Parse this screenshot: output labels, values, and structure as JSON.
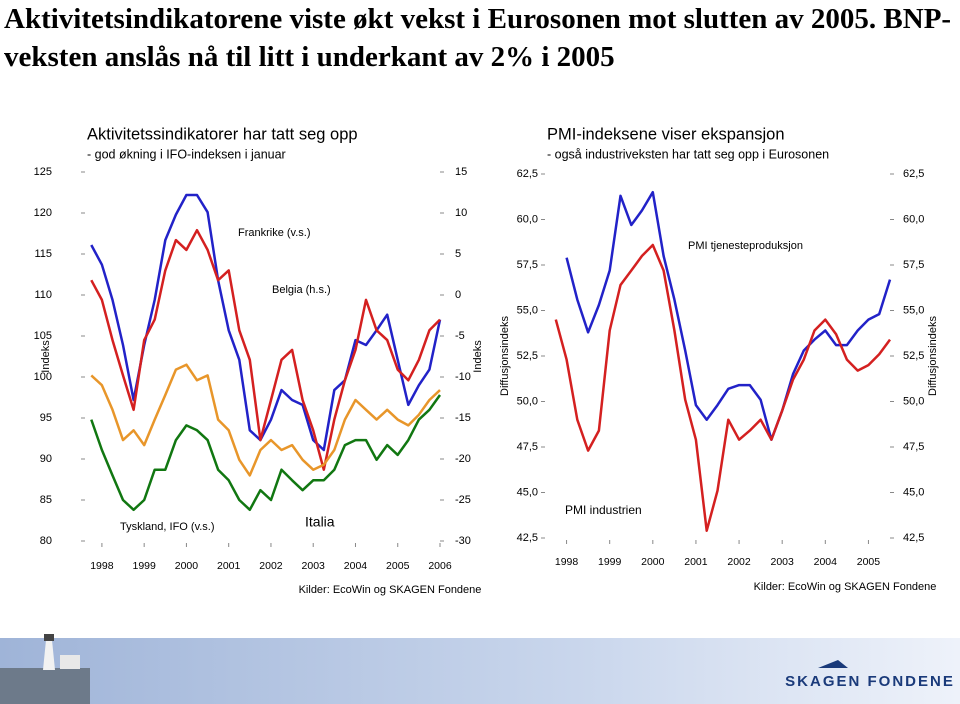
{
  "title": "Aktivitetsindikatorene viste økt vekst i Eurosonen mot slutten av 2005. BNP-veksten anslås nå til litt i underkant av 2% i 2005",
  "logo": "SKAGEN FONDENE",
  "chart_data": [
    {
      "type": "line",
      "title": "Aktivitetssindikatorer har tatt seg opp",
      "subtitle": "- god økning i IFO-indeksen i januar",
      "ylabel": "Indeks",
      "y2label": "Indeks",
      "source": "Kilder: EcoWin og SKAGEN Fondene",
      "xlim": [
        1997.6,
        2006.0
      ],
      "xticks": [
        1998,
        1999,
        2000,
        2001,
        2002,
        2003,
        2004,
        2005,
        2006
      ],
      "ylim": [
        80,
        125
      ],
      "yticks": [
        80,
        85,
        90,
        95,
        100,
        105,
        110,
        115,
        120,
        125
      ],
      "y2lim": [
        -30,
        15
      ],
      "y2ticks": [
        -30,
        -25,
        -20,
        -15,
        -10,
        -5,
        0,
        5,
        10,
        15
      ],
      "x": [
        1997.75,
        1998.0,
        1998.25,
        1998.5,
        1998.75,
        1999.0,
        1999.25,
        1999.5,
        1999.75,
        2000.0,
        2000.25,
        2000.5,
        2000.75,
        2001.0,
        2001.25,
        2001.5,
        2001.75,
        2002.0,
        2002.25,
        2002.5,
        2002.75,
        2003.0,
        2003.25,
        2003.5,
        2003.75,
        2004.0,
        2004.25,
        2004.5,
        2004.75,
        2005.0,
        2005.25,
        2005.5,
        2005.75,
        2006.0
      ],
      "series": [
        {
          "name": "Frankrike (v.s.)",
          "color": "#2222c8",
          "values": [
            116.1,
            113.7,
            109.4,
            103.9,
            97.2,
            103.9,
            109.4,
            116.7,
            119.8,
            122.2,
            122.2,
            120.1,
            111.8,
            105.7,
            102.1,
            93.5,
            92.3,
            94.8,
            98.4,
            97.2,
            96.6,
            92.3,
            91.1,
            98.4,
            99.6,
            104.5,
            103.9,
            105.7,
            107.6,
            102.1,
            96.6,
            99.0,
            100.9,
            107.0
          ]
        },
        {
          "name": "Belgia (h.s.)",
          "color": "#d42020",
          "axis": "y2",
          "values": [
            1.8,
            -0.6,
            -5.5,
            -9.8,
            -14.0,
            -5.5,
            -3.0,
            3.0,
            6.7,
            5.5,
            7.9,
            5.5,
            1.8,
            3.0,
            -4.3,
            -7.9,
            -17.7,
            -12.8,
            -7.9,
            -6.7,
            -12.8,
            -16.5,
            -21.3,
            -15.2,
            -10.4,
            -6.7,
            -0.6,
            -4.3,
            -5.5,
            -9.1,
            -10.4,
            -7.9,
            -4.3,
            -3.0
          ]
        },
        {
          "name": "Italia",
          "color": "#e8962a",
          "values": [
            100.2,
            99.0,
            96.0,
            92.3,
            93.5,
            91.7,
            94.8,
            97.8,
            100.9,
            101.5,
            99.6,
            100.2,
            94.8,
            93.5,
            89.9,
            88.0,
            91.1,
            92.3,
            91.1,
            91.7,
            89.9,
            88.7,
            89.3,
            91.1,
            94.8,
            97.2,
            96.0,
            94.8,
            96.0,
            94.8,
            94.1,
            95.4,
            97.2,
            98.4
          ]
        },
        {
          "name": "Tyskland, IFO (v.s.)",
          "color": "#117711",
          "values": [
            94.8,
            91.1,
            88.0,
            85.0,
            83.8,
            85.0,
            88.7,
            88.7,
            92.3,
            94.1,
            93.5,
            92.3,
            88.7,
            87.4,
            85.0,
            83.8,
            86.2,
            85.0,
            88.7,
            87.4,
            86.2,
            87.4,
            87.4,
            88.7,
            91.7,
            92.3,
            92.3,
            89.9,
            91.7,
            90.5,
            92.3,
            94.8,
            96.0,
            97.8
          ]
        }
      ]
    },
    {
      "type": "line",
      "title": "PMI-indeksene viser ekspansjon",
      "subtitle": "- også industriveksten har tatt seg opp i Eurosonen",
      "ylabel": "Diffusjonsindeks",
      "y2label": "Diffusjonsindeks",
      "source": "Kilder: EcoWin og SKAGEN Fondene",
      "xlim": [
        1997.5,
        2005.5
      ],
      "xticks": [
        1998,
        1999,
        2000,
        2001,
        2002,
        2003,
        2004,
        2005
      ],
      "ylim": [
        42.5,
        62.5
      ],
      "yticks": [
        {
          "value": 42.5,
          "label": "42,5"
        },
        {
          "value": 45,
          "label": "45,0"
        },
        {
          "value": 47.5,
          "label": "47,5"
        },
        {
          "value": 50,
          "label": "50,0"
        },
        {
          "value": 52.5,
          "label": "52,5"
        },
        {
          "value": 55,
          "label": "55,0"
        },
        {
          "value": 57.5,
          "label": "57,5"
        },
        {
          "value": 60,
          "label": "60,0"
        },
        {
          "value": 62.5,
          "label": "62,5"
        }
      ],
      "y2lim": [
        42.5,
        62.5
      ],
      "y2ticks": [
        {
          "value": 42.5,
          "label": "42,5"
        },
        {
          "value": 45,
          "label": "45,0"
        },
        {
          "value": 47.5,
          "label": "47,5"
        },
        {
          "value": 50,
          "label": "50,0"
        },
        {
          "value": 52.5,
          "label": "52,5"
        },
        {
          "value": 55,
          "label": "55,0"
        },
        {
          "value": 57.5,
          "label": "57,5"
        },
        {
          "value": 60,
          "label": "60,0"
        },
        {
          "value": 62.5,
          "label": "62,5"
        }
      ],
      "x": [
        1997.75,
        1998.0,
        1998.25,
        1998.5,
        1998.75,
        1999.0,
        1999.25,
        1999.5,
        1999.75,
        2000.0,
        2000.25,
        2000.5,
        2000.75,
        2001.0,
        2001.25,
        2001.5,
        2001.75,
        2002.0,
        2002.25,
        2002.5,
        2002.75,
        2003.0,
        2003.25,
        2003.5,
        2003.75,
        2004.0,
        2004.25,
        2004.5,
        2004.75,
        2005.0,
        2005.25,
        2005.5
      ],
      "series": [
        {
          "name": "PMI tjenesteproduksjon",
          "color": "#2222c8",
          "values": [
            null,
            57.9,
            55.6,
            53.8,
            55.3,
            57.2,
            61.3,
            59.7,
            60.5,
            61.5,
            58.0,
            55.6,
            52.8,
            49.8,
            49.0,
            49.8,
            50.7,
            50.9,
            50.9,
            50.1,
            47.9,
            49.5,
            51.5,
            52.8,
            53.4,
            53.9,
            53.1,
            53.1,
            53.9,
            54.5,
            54.8,
            56.7
          ]
        },
        {
          "name": "PMI industrien",
          "color": "#d42020",
          "values": [
            54.5,
            52.3,
            49.0,
            47.3,
            48.4,
            53.9,
            56.4,
            57.2,
            58.0,
            58.6,
            57.2,
            53.9,
            50.1,
            47.9,
            42.9,
            45.1,
            49.0,
            47.9,
            48.4,
            49.0,
            47.9,
            49.5,
            51.2,
            52.3,
            53.9,
            54.5,
            53.7,
            52.3,
            51.7,
            52.0,
            52.6,
            53.4
          ]
        }
      ]
    }
  ]
}
